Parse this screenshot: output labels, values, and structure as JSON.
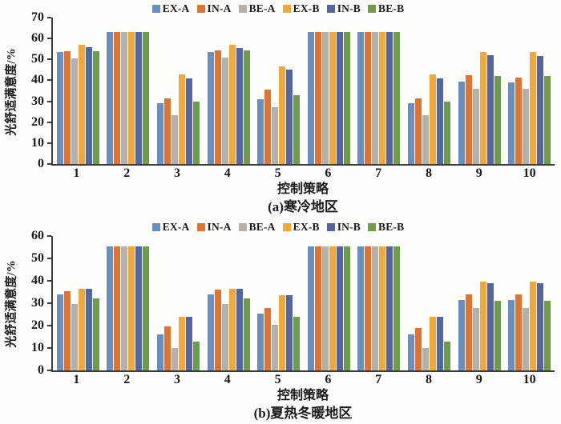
{
  "chart_data": [
    {
      "type": "bar",
      "title": "(a)寒冷地区",
      "xlabel": "控制策略",
      "ylabel": "光舒适满意度/%",
      "ylim": [
        0,
        70
      ],
      "ytick_step": 10,
      "grid": false,
      "legend_position": "top",
      "categories": [
        "1",
        "2",
        "3",
        "4",
        "5",
        "6",
        "7",
        "8",
        "9",
        "10"
      ],
      "series": [
        {
          "name": "EX-A",
          "color": "#6a8fbe",
          "values": [
            53.5,
            63,
            29,
            53.5,
            31,
            63,
            63,
            29,
            39.5,
            39
          ]
        },
        {
          "name": "IN-A",
          "color": "#dd7434",
          "values": [
            54,
            63,
            31.5,
            54.5,
            35.5,
            63,
            63,
            31.5,
            42.5,
            41.5
          ]
        },
        {
          "name": "BE-A",
          "color": "#b6b0aa",
          "values": [
            50.5,
            63,
            23.5,
            51,
            27,
            63,
            63,
            23.5,
            36,
            36
          ]
        },
        {
          "name": "EX-B",
          "color": "#f0a83c",
          "values": [
            57,
            63,
            43,
            57,
            46.5,
            63,
            63,
            43,
            53.5,
            53.5
          ]
        },
        {
          "name": "IN-B",
          "color": "#5465a2",
          "values": [
            56,
            63,
            41,
            55.5,
            45,
            63,
            63,
            41,
            52,
            51.5
          ]
        },
        {
          "name": "BE-B",
          "color": "#6f9c4c",
          "values": [
            54,
            63,
            30,
            54.5,
            33,
            63,
            63,
            30,
            42,
            42
          ]
        }
      ]
    },
    {
      "type": "bar",
      "title": "(b)夏热冬暖地区",
      "xlabel": "控制策略",
      "ylabel": "光舒适满意度/%",
      "ylim": [
        0,
        60
      ],
      "ytick_step": 10,
      "grid": false,
      "legend_position": "top",
      "categories": [
        "1",
        "2",
        "3",
        "4",
        "5",
        "6",
        "7",
        "8",
        "9",
        "10"
      ],
      "series": [
        {
          "name": "EX-A",
          "color": "#6a8fbe",
          "values": [
            34,
            55.5,
            16,
            34,
            25.5,
            55.5,
            55.5,
            16,
            31.5,
            31.5
          ]
        },
        {
          "name": "IN-A",
          "color": "#dd7434",
          "values": [
            35.5,
            55.5,
            19.5,
            36,
            28,
            55.5,
            55.5,
            19,
            34,
            34
          ]
        },
        {
          "name": "BE-A",
          "color": "#b6b0aa",
          "values": [
            29.5,
            55.5,
            10,
            29.5,
            20.5,
            55.5,
            55.5,
            10,
            28,
            28
          ]
        },
        {
          "name": "EX-B",
          "color": "#f0a83c",
          "values": [
            36.5,
            55.5,
            24,
            36.5,
            33.5,
            55.5,
            55.5,
            24,
            39.5,
            39.5
          ]
        },
        {
          "name": "IN-B",
          "color": "#5465a2",
          "values": [
            36.5,
            55.5,
            24,
            36.5,
            33.5,
            55.5,
            55.5,
            24,
            39,
            39
          ]
        },
        {
          "name": "BE-B",
          "color": "#6f9c4c",
          "values": [
            32,
            55.5,
            13,
            32,
            24,
            55.5,
            55.5,
            13,
            31,
            31
          ]
        }
      ]
    }
  ]
}
